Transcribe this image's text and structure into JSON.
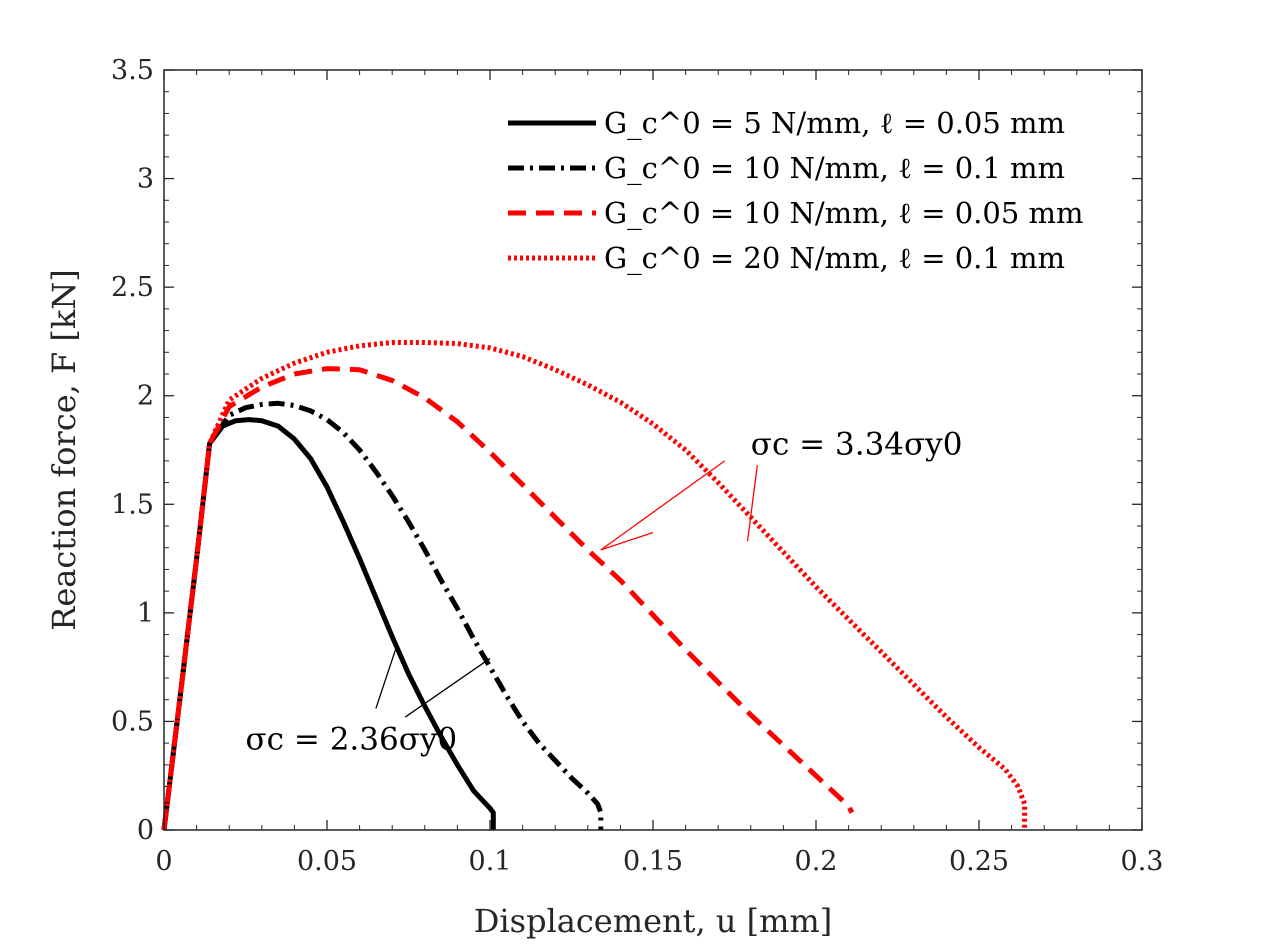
{
  "chart_data": {
    "type": "line",
    "title": "",
    "xlabel": "Displacement, u [mm]",
    "ylabel": "Reaction force, F [kN]",
    "xlim": [
      0,
      0.3
    ],
    "ylim": [
      0,
      3.5
    ],
    "xticks": [
      0,
      0.05,
      0.1,
      0.15,
      0.2,
      0.25,
      0.3
    ],
    "xtick_labels": [
      "0",
      "0.05",
      "0.1",
      "0.15",
      "0.2",
      "0.25",
      "0.3"
    ],
    "yticks": [
      0,
      0.5,
      1,
      1.5,
      2,
      2.5,
      3,
      3.5
    ],
    "ytick_labels": [
      "0",
      "0.5",
      "1",
      "1.5",
      "2",
      "2.5",
      "3",
      "3.5"
    ],
    "grid": false,
    "legend_position": "top-right",
    "series": [
      {
        "name": "G_c^0 = 5 N/mm, ℓ = 0.05 mm",
        "color": "#000000",
        "style": "solid",
        "x": [
          0,
          0.005,
          0.01,
          0.014,
          0.018,
          0.022,
          0.026,
          0.03,
          0.035,
          0.04,
          0.045,
          0.05,
          0.055,
          0.06,
          0.065,
          0.07,
          0.075,
          0.08,
          0.085,
          0.09,
          0.095,
          0.1,
          0.101,
          0.101
        ],
        "y": [
          0,
          0.62,
          1.25,
          1.78,
          1.86,
          1.885,
          1.89,
          1.885,
          1.86,
          1.8,
          1.71,
          1.58,
          1.42,
          1.25,
          1.07,
          0.89,
          0.72,
          0.57,
          0.43,
          0.3,
          0.18,
          0.1,
          0.08,
          0.0
        ]
      },
      {
        "name": "G_c^0 = 10 N/mm, ℓ = 0.1 mm",
        "color": "#000000",
        "style": "dashdot",
        "x": [
          0,
          0.005,
          0.01,
          0.014,
          0.02,
          0.025,
          0.03,
          0.035,
          0.04,
          0.045,
          0.05,
          0.055,
          0.06,
          0.065,
          0.07,
          0.075,
          0.08,
          0.085,
          0.09,
          0.095,
          0.1,
          0.105,
          0.11,
          0.115,
          0.12,
          0.125,
          0.13,
          0.133,
          0.134,
          0.134
        ],
        "y": [
          0,
          0.62,
          1.25,
          1.78,
          1.91,
          1.945,
          1.96,
          1.965,
          1.955,
          1.93,
          1.89,
          1.83,
          1.75,
          1.65,
          1.54,
          1.42,
          1.29,
          1.15,
          1.02,
          0.88,
          0.75,
          0.62,
          0.5,
          0.4,
          0.32,
          0.24,
          0.17,
          0.12,
          0.08,
          0.0
        ]
      },
      {
        "name": "G_c^0 = 10 N/mm, ℓ = 0.05 mm",
        "color": "#ff0000",
        "style": "dashed",
        "x": [
          0,
          0.005,
          0.01,
          0.014,
          0.02,
          0.03,
          0.04,
          0.05,
          0.06,
          0.07,
          0.08,
          0.09,
          0.1,
          0.11,
          0.12,
          0.13,
          0.14,
          0.15,
          0.16,
          0.17,
          0.18,
          0.19,
          0.2,
          0.205,
          0.21,
          0.211
        ],
        "y": [
          0,
          0.62,
          1.25,
          1.78,
          1.95,
          2.04,
          2.1,
          2.125,
          2.12,
          2.07,
          1.99,
          1.88,
          1.74,
          1.59,
          1.44,
          1.29,
          1.15,
          0.99,
          0.83,
          0.68,
          0.53,
          0.39,
          0.25,
          0.18,
          0.11,
          0.08
        ]
      },
      {
        "name": "G_c^0 = 20 N/mm, ℓ = 0.1 mm",
        "color": "#ff0000",
        "style": "dotted",
        "x": [
          0,
          0.005,
          0.01,
          0.014,
          0.02,
          0.03,
          0.04,
          0.05,
          0.06,
          0.07,
          0.08,
          0.09,
          0.1,
          0.11,
          0.12,
          0.13,
          0.14,
          0.15,
          0.16,
          0.17,
          0.18,
          0.19,
          0.2,
          0.21,
          0.22,
          0.23,
          0.24,
          0.25,
          0.258,
          0.262,
          0.264,
          0.264
        ],
        "y": [
          0,
          0.62,
          1.25,
          1.78,
          1.98,
          2.08,
          2.15,
          2.2,
          2.23,
          2.245,
          2.245,
          2.24,
          2.22,
          2.18,
          2.12,
          2.05,
          1.97,
          1.87,
          1.75,
          1.6,
          1.44,
          1.28,
          1.12,
          0.97,
          0.82,
          0.67,
          0.52,
          0.38,
          0.28,
          0.2,
          0.12,
          0.0
        ]
      }
    ],
    "annotations": [
      {
        "label": "σc = 2.36σy0",
        "text_at": [
          0.025,
          0.37
        ],
        "pointer_lines": [
          {
            "from": [
              0.065,
              0.56
            ],
            "to": [
              0.071,
              0.83
            ]
          },
          {
            "from": [
              0.074,
              0.52
            ],
            "to": [
              0.1,
              0.79
            ]
          }
        ]
      },
      {
        "label": "σc = 3.34σy0",
        "text_at": [
          0.18,
          1.73
        ],
        "pointer_lines": [
          {
            "from": [
              0.15,
              1.37
            ],
            "to": [
              0.134,
              1.29
            ]
          },
          {
            "from": [
              0.172,
              1.7
            ],
            "to": [
              0.134,
              1.29
            ]
          },
          {
            "from": [
              0.182,
              1.68
            ],
            "to": [
              0.179,
              1.33
            ]
          }
        ]
      }
    ]
  }
}
